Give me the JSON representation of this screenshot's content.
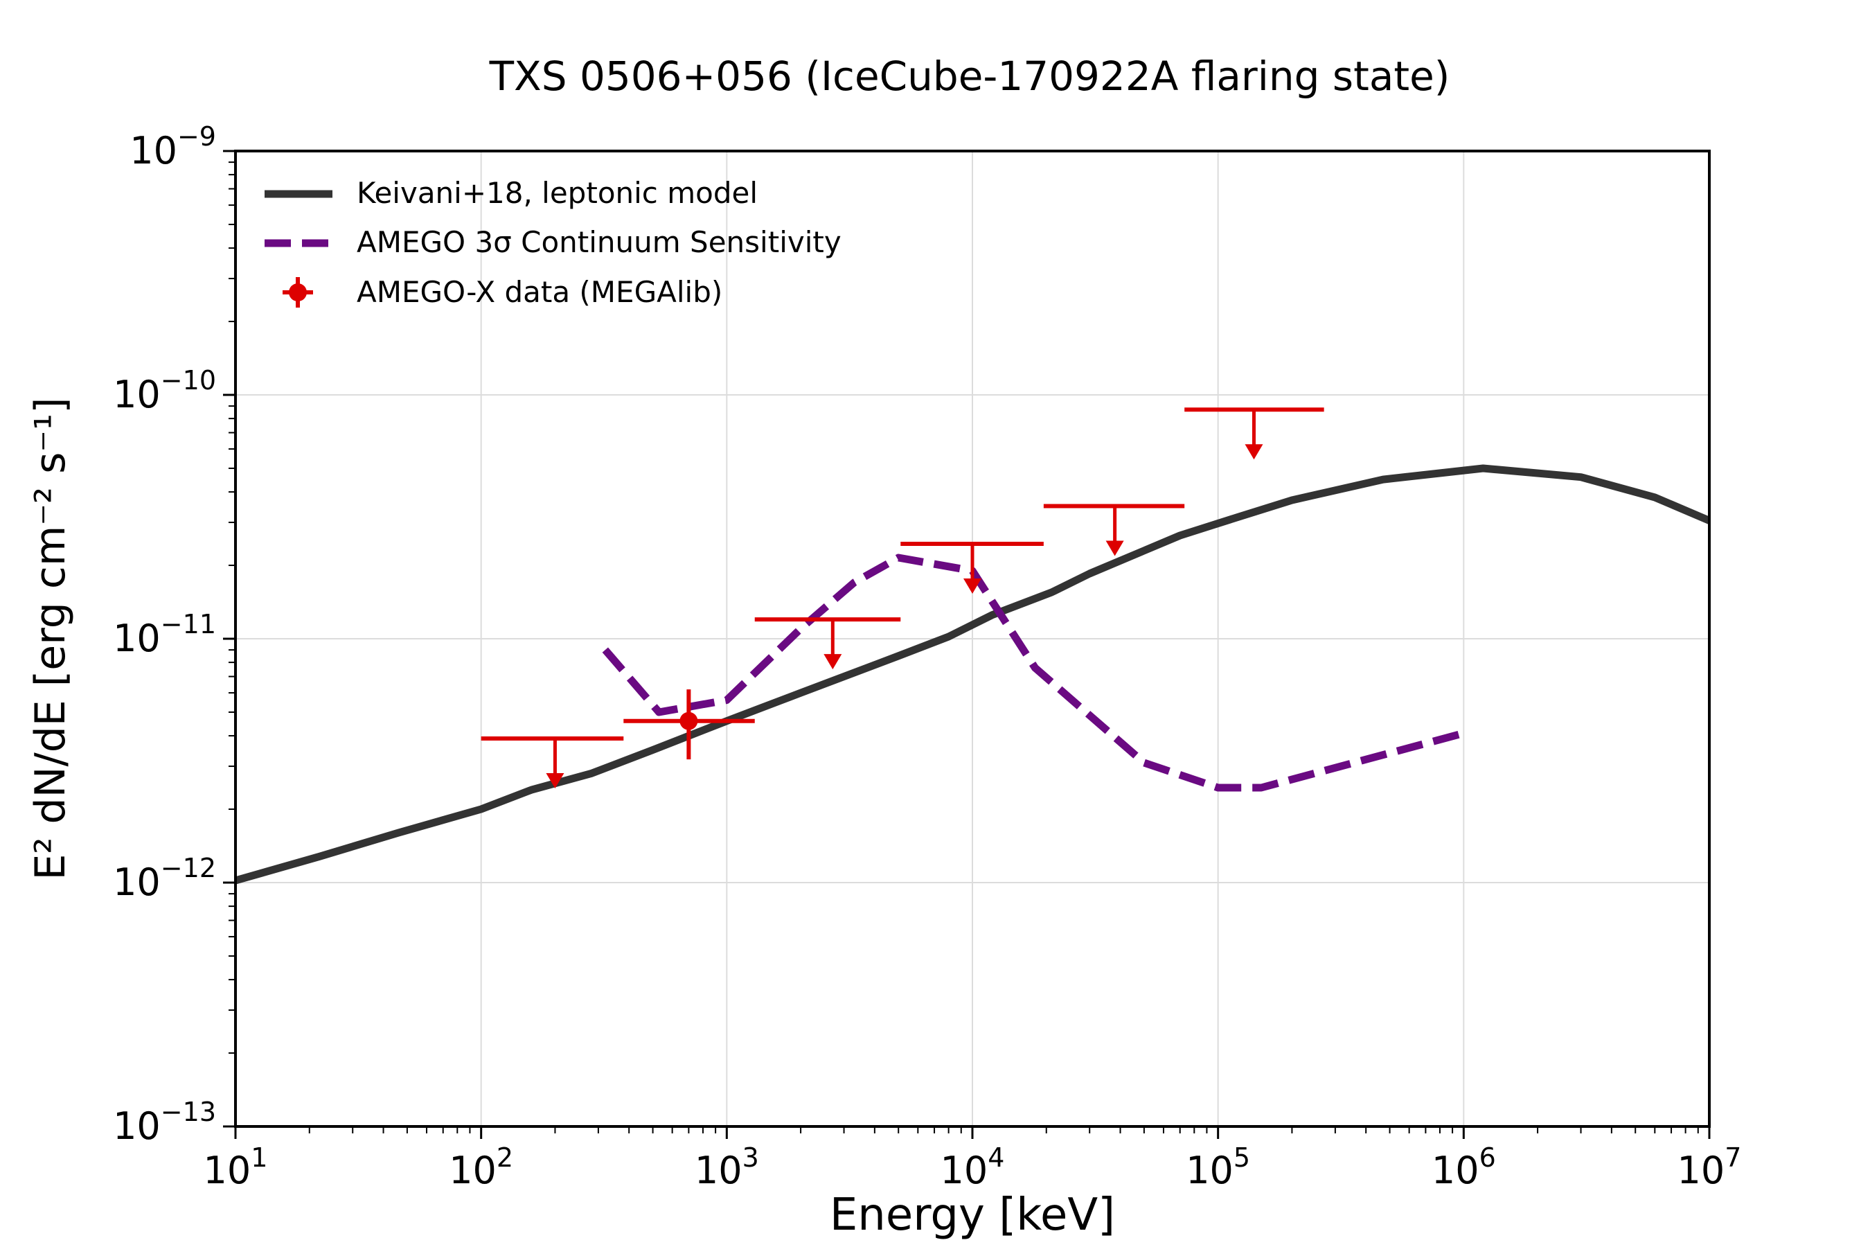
{
  "chart_data": {
    "type": "line",
    "title": "TXS 0506+056 (IceCube-170922A flaring state)",
    "xlabel": "Energy [keV]",
    "ylabel": "E² dN/dE [erg cm⁻² s⁻¹]",
    "xscale": "log",
    "yscale": "log",
    "xlim": [
      10,
      10000000
    ],
    "ylim": [
      1e-13,
      1e-09
    ],
    "grid": true,
    "legend_position": "top-left",
    "x_ticks": [
      {
        "value": 10,
        "base": "10",
        "exp": "1"
      },
      {
        "value": 100,
        "base": "10",
        "exp": "2"
      },
      {
        "value": 1000,
        "base": "10",
        "exp": "3"
      },
      {
        "value": 10000,
        "base": "10",
        "exp": "4"
      },
      {
        "value": 100000,
        "base": "10",
        "exp": "5"
      },
      {
        "value": 1000000,
        "base": "10",
        "exp": "6"
      },
      {
        "value": 10000000,
        "base": "10",
        "exp": "7"
      }
    ],
    "y_ticks": [
      {
        "value": 1e-13,
        "base": "10",
        "exp": "−13"
      },
      {
        "value": 1e-12,
        "base": "10",
        "exp": "−12"
      },
      {
        "value": 1e-11,
        "base": "10",
        "exp": "−11"
      },
      {
        "value": 1e-10,
        "base": "10",
        "exp": "−10"
      },
      {
        "value": 1e-09,
        "base": "10",
        "exp": "−9"
      }
    ],
    "series": [
      {
        "name": "Keivani+18, leptonic model",
        "style": "solid",
        "color": "#333333",
        "x": [
          10,
          22,
          46,
          100,
          160,
          280,
          500,
          1000,
          2000,
          5000,
          8000,
          12000,
          21000,
          30000,
          70000,
          120000,
          200000,
          470000,
          1200000,
          3000000,
          6000000,
          10000000
        ],
        "y": [
          1.02e-12,
          1.28e-12,
          1.6e-12,
          2e-12,
          2.4e-12,
          2.8e-12,
          3.5e-12,
          4.6e-12,
          6e-12,
          8.5e-12,
          1.02e-11,
          1.25e-11,
          1.55e-11,
          1.85e-11,
          2.65e-11,
          3.15e-11,
          3.7e-11,
          4.5e-11,
          5e-11,
          4.6e-11,
          3.8e-11,
          3.05e-11
        ]
      },
      {
        "name": "AMEGO 3σ Continuum Sensitivity",
        "style": "dashed",
        "color": "#6a0a82",
        "x": [
          320,
          530,
          1000,
          2000,
          3300,
          5000,
          10000,
          18000,
          50000,
          100000,
          150000,
          1000000
        ],
        "y": [
          9e-12,
          5e-12,
          5.6e-12,
          1.1e-11,
          1.7e-11,
          2.15e-11,
          1.9e-11,
          7.6e-12,
          3.1e-12,
          2.45e-12,
          2.45e-12,
          4.1e-12
        ]
      }
    ],
    "data_points": {
      "name": "AMEGO-X data (MEGAlib)",
      "color": "#dd0000",
      "points": [
        {
          "x": 700,
          "y": 4.6e-12,
          "xerr": [
            380,
            1300
          ],
          "yerr": [
            3.2e-12,
            6.2e-12
          ]
        }
      ]
    },
    "upper_limits": {
      "color": "#dd0000",
      "points": [
        {
          "x": 200,
          "x_lo": 100,
          "x_hi": 380,
          "y": 3.9e-12
        },
        {
          "x": 2700,
          "x_lo": 1300,
          "x_hi": 5100,
          "y": 1.2e-11
        },
        {
          "x": 10000,
          "x_lo": 5100,
          "x_hi": 19500,
          "y": 2.45e-11
        },
        {
          "x": 38000,
          "x_lo": 19500,
          "x_hi": 73000,
          "y": 3.5e-11
        },
        {
          "x": 140000,
          "x_lo": 73000,
          "x_hi": 270000,
          "y": 8.7e-11
        }
      ]
    }
  }
}
